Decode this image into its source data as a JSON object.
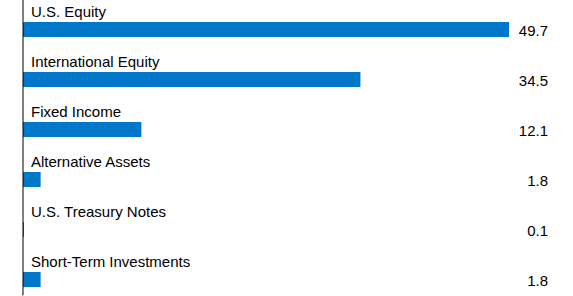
{
  "chart_data": {
    "type": "bar",
    "orientation": "horizontal",
    "categories": [
      "U.S. Equity",
      "International Equity",
      "Fixed Income",
      "Alternative Assets",
      "U.S. Treasury Notes",
      "Short-Term Investments"
    ],
    "values": [
      49.7,
      34.5,
      12.1,
      1.8,
      0.1,
      1.8
    ],
    "color": "#0077c8",
    "xlim": [
      0,
      50
    ],
    "data_labels": true,
    "tick_labels": false,
    "grid": false
  }
}
